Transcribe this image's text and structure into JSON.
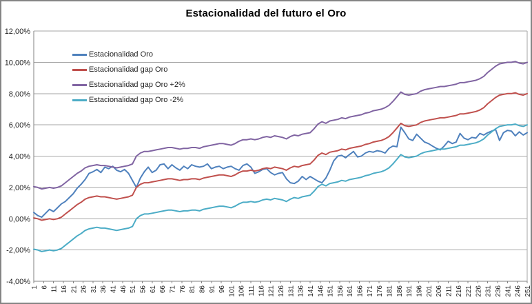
{
  "chart_data": {
    "type": "line",
    "title": "Estacionalidad del futuro el Oro",
    "xlabel": "",
    "ylabel": "",
    "xlim": [
      1,
      251
    ],
    "ylim": [
      -4,
      12
    ],
    "y_tick_step": 2,
    "grid": "horizontal",
    "legend_position": "inside-top-left",
    "number_format": "percent, comma decimal (es)",
    "x_tick_labels": [
      "1",
      "6",
      "11",
      "16",
      "21",
      "26",
      "31",
      "36",
      "41",
      "46",
      "51",
      "56",
      "61",
      "66",
      "71",
      "76",
      "81",
      "86",
      "91",
      "96",
      "101",
      "106",
      "111",
      "116",
      "121",
      "126",
      "131",
      "136",
      "141",
      "146",
      "151",
      "156",
      "161",
      "166",
      "171",
      "176",
      "181",
      "186",
      "191",
      "196",
      "201",
      "206",
      "211",
      "216",
      "221",
      "226",
      "231",
      "236",
      "241",
      "246",
      "251"
    ],
    "y_tick_labels": [
      "12,00%",
      "10,00%",
      "8,00%",
      "6,00%",
      "4,00%",
      "2,00%",
      "0,00%",
      "-2,00%",
      "-4,00%"
    ],
    "x_start": 1,
    "x_step": 2,
    "series": [
      {
        "name": "Estacionalidad Oro",
        "color": "#4F81BD",
        "values": [
          0.4,
          0.2,
          0.1,
          0.35,
          0.6,
          0.45,
          0.7,
          0.95,
          1.1,
          1.35,
          1.6,
          1.95,
          2.2,
          2.5,
          2.9,
          3.0,
          3.15,
          2.95,
          3.3,
          3.2,
          3.35,
          3.1,
          3.0,
          3.15,
          2.9,
          2.45,
          2.0,
          2.6,
          3.0,
          3.3,
          2.95,
          3.1,
          3.45,
          3.5,
          3.2,
          3.45,
          3.25,
          3.1,
          3.35,
          3.2,
          3.45,
          3.35,
          3.3,
          3.35,
          3.5,
          3.2,
          3.3,
          3.35,
          3.2,
          3.3,
          3.35,
          3.2,
          3.1,
          3.4,
          3.5,
          3.3,
          2.9,
          3.0,
          3.15,
          3.2,
          2.95,
          2.8,
          2.9,
          2.95,
          2.55,
          2.3,
          2.25,
          2.4,
          2.7,
          2.5,
          2.7,
          2.55,
          2.4,
          2.3,
          2.6,
          3.1,
          3.7,
          4.0,
          4.05,
          3.9,
          4.1,
          4.3,
          3.95,
          4.0,
          4.2,
          4.3,
          4.25,
          4.35,
          4.3,
          4.2,
          4.5,
          4.65,
          4.6,
          5.85,
          5.5,
          5.1,
          5.0,
          5.4,
          5.15,
          4.9,
          4.8,
          4.65,
          4.5,
          4.4,
          4.65,
          4.95,
          4.8,
          4.9,
          5.45,
          5.15,
          5.05,
          5.2,
          5.15,
          5.45,
          5.35,
          5.5,
          5.6,
          5.7,
          5.0,
          5.5,
          5.65,
          5.6,
          5.3,
          5.55,
          5.35,
          5.5
        ]
      },
      {
        "name": "Estacionalidad gap Oro",
        "color": "#C0504D",
        "values": [
          0.05,
          0.0,
          -0.1,
          -0.05,
          0.0,
          -0.05,
          0.0,
          0.1,
          0.3,
          0.5,
          0.7,
          0.9,
          1.05,
          1.25,
          1.35,
          1.4,
          1.45,
          1.4,
          1.4,
          1.35,
          1.3,
          1.25,
          1.3,
          1.35,
          1.4,
          1.5,
          2.0,
          2.2,
          2.3,
          2.3,
          2.35,
          2.4,
          2.45,
          2.5,
          2.55,
          2.55,
          2.5,
          2.45,
          2.5,
          2.5,
          2.55,
          2.55,
          2.5,
          2.6,
          2.65,
          2.7,
          2.75,
          2.8,
          2.8,
          2.75,
          2.7,
          2.8,
          2.95,
          3.05,
          3.05,
          3.1,
          3.05,
          3.1,
          3.2,
          3.25,
          3.2,
          3.3,
          3.25,
          3.2,
          3.1,
          3.25,
          3.35,
          3.3,
          3.4,
          3.45,
          3.5,
          3.75,
          4.05,
          4.2,
          4.1,
          4.25,
          4.3,
          4.35,
          4.45,
          4.4,
          4.5,
          4.55,
          4.6,
          4.65,
          4.75,
          4.8,
          4.9,
          4.95,
          5.0,
          5.1,
          5.25,
          5.5,
          5.8,
          6.1,
          5.95,
          5.9,
          5.95,
          6.0,
          6.15,
          6.25,
          6.3,
          6.35,
          6.4,
          6.45,
          6.45,
          6.5,
          6.55,
          6.6,
          6.7,
          6.7,
          6.75,
          6.8,
          6.85,
          6.95,
          7.1,
          7.35,
          7.55,
          7.75,
          7.9,
          7.95,
          8.0,
          8.0,
          8.05,
          7.95,
          7.9,
          8.0
        ]
      },
      {
        "name": "Estacionalidad gap Oro +2%",
        "color": "#8064A2",
        "values": [
          2.05,
          2.0,
          1.9,
          1.95,
          2.0,
          1.95,
          2.0,
          2.1,
          2.3,
          2.5,
          2.7,
          2.9,
          3.05,
          3.25,
          3.35,
          3.4,
          3.45,
          3.4,
          3.4,
          3.35,
          3.3,
          3.25,
          3.3,
          3.35,
          3.4,
          3.5,
          4.0,
          4.2,
          4.3,
          4.3,
          4.35,
          4.4,
          4.45,
          4.5,
          4.55,
          4.55,
          4.5,
          4.45,
          4.5,
          4.5,
          4.55,
          4.55,
          4.5,
          4.6,
          4.65,
          4.7,
          4.75,
          4.8,
          4.8,
          4.75,
          4.7,
          4.8,
          4.95,
          5.05,
          5.05,
          5.1,
          5.05,
          5.1,
          5.2,
          5.25,
          5.2,
          5.3,
          5.25,
          5.2,
          5.1,
          5.25,
          5.35,
          5.3,
          5.4,
          5.45,
          5.5,
          5.75,
          6.05,
          6.2,
          6.1,
          6.25,
          6.3,
          6.35,
          6.45,
          6.4,
          6.5,
          6.55,
          6.6,
          6.65,
          6.75,
          6.8,
          6.9,
          6.95,
          7.0,
          7.1,
          7.25,
          7.5,
          7.8,
          8.1,
          7.95,
          7.9,
          7.95,
          8.0,
          8.15,
          8.25,
          8.3,
          8.35,
          8.4,
          8.45,
          8.45,
          8.5,
          8.55,
          8.6,
          8.7,
          8.7,
          8.75,
          8.8,
          8.85,
          8.95,
          9.1,
          9.35,
          9.55,
          9.75,
          9.9,
          9.95,
          10.0,
          10.0,
          10.05,
          9.95,
          9.9,
          10.0
        ]
      },
      {
        "name": "Estacionalidad gap Oro -2%",
        "color": "#4BACC6",
        "values": [
          -1.95,
          -2.0,
          -2.1,
          -2.05,
          -2.0,
          -2.05,
          -2.0,
          -1.9,
          -1.7,
          -1.5,
          -1.3,
          -1.1,
          -0.95,
          -0.75,
          -0.65,
          -0.6,
          -0.55,
          -0.6,
          -0.6,
          -0.65,
          -0.7,
          -0.75,
          -0.7,
          -0.65,
          -0.6,
          -0.5,
          0.0,
          0.2,
          0.3,
          0.3,
          0.35,
          0.4,
          0.45,
          0.5,
          0.55,
          0.55,
          0.5,
          0.45,
          0.5,
          0.5,
          0.55,
          0.55,
          0.5,
          0.6,
          0.65,
          0.7,
          0.75,
          0.8,
          0.8,
          0.75,
          0.7,
          0.8,
          0.95,
          1.05,
          1.05,
          1.1,
          1.05,
          1.1,
          1.2,
          1.25,
          1.2,
          1.3,
          1.25,
          1.2,
          1.1,
          1.25,
          1.35,
          1.3,
          1.4,
          1.45,
          1.5,
          1.75,
          2.05,
          2.2,
          2.1,
          2.25,
          2.3,
          2.35,
          2.45,
          2.4,
          2.5,
          2.55,
          2.6,
          2.65,
          2.75,
          2.8,
          2.9,
          2.95,
          3.0,
          3.1,
          3.25,
          3.5,
          3.8,
          4.1,
          3.95,
          3.9,
          3.95,
          4.0,
          4.15,
          4.25,
          4.3,
          4.35,
          4.4,
          4.45,
          4.45,
          4.5,
          4.55,
          4.6,
          4.7,
          4.7,
          4.75,
          4.8,
          4.85,
          4.95,
          5.1,
          5.35,
          5.55,
          5.75,
          5.9,
          5.95,
          6.0,
          6.0,
          6.05,
          5.95,
          5.9,
          6.0
        ]
      }
    ]
  },
  "colors": {
    "background": "#FFFFFF",
    "chart_border": "#848484",
    "gridline": "#A6A6A6",
    "axis_line": "#808080",
    "tick_text": "#1F1F1F"
  }
}
